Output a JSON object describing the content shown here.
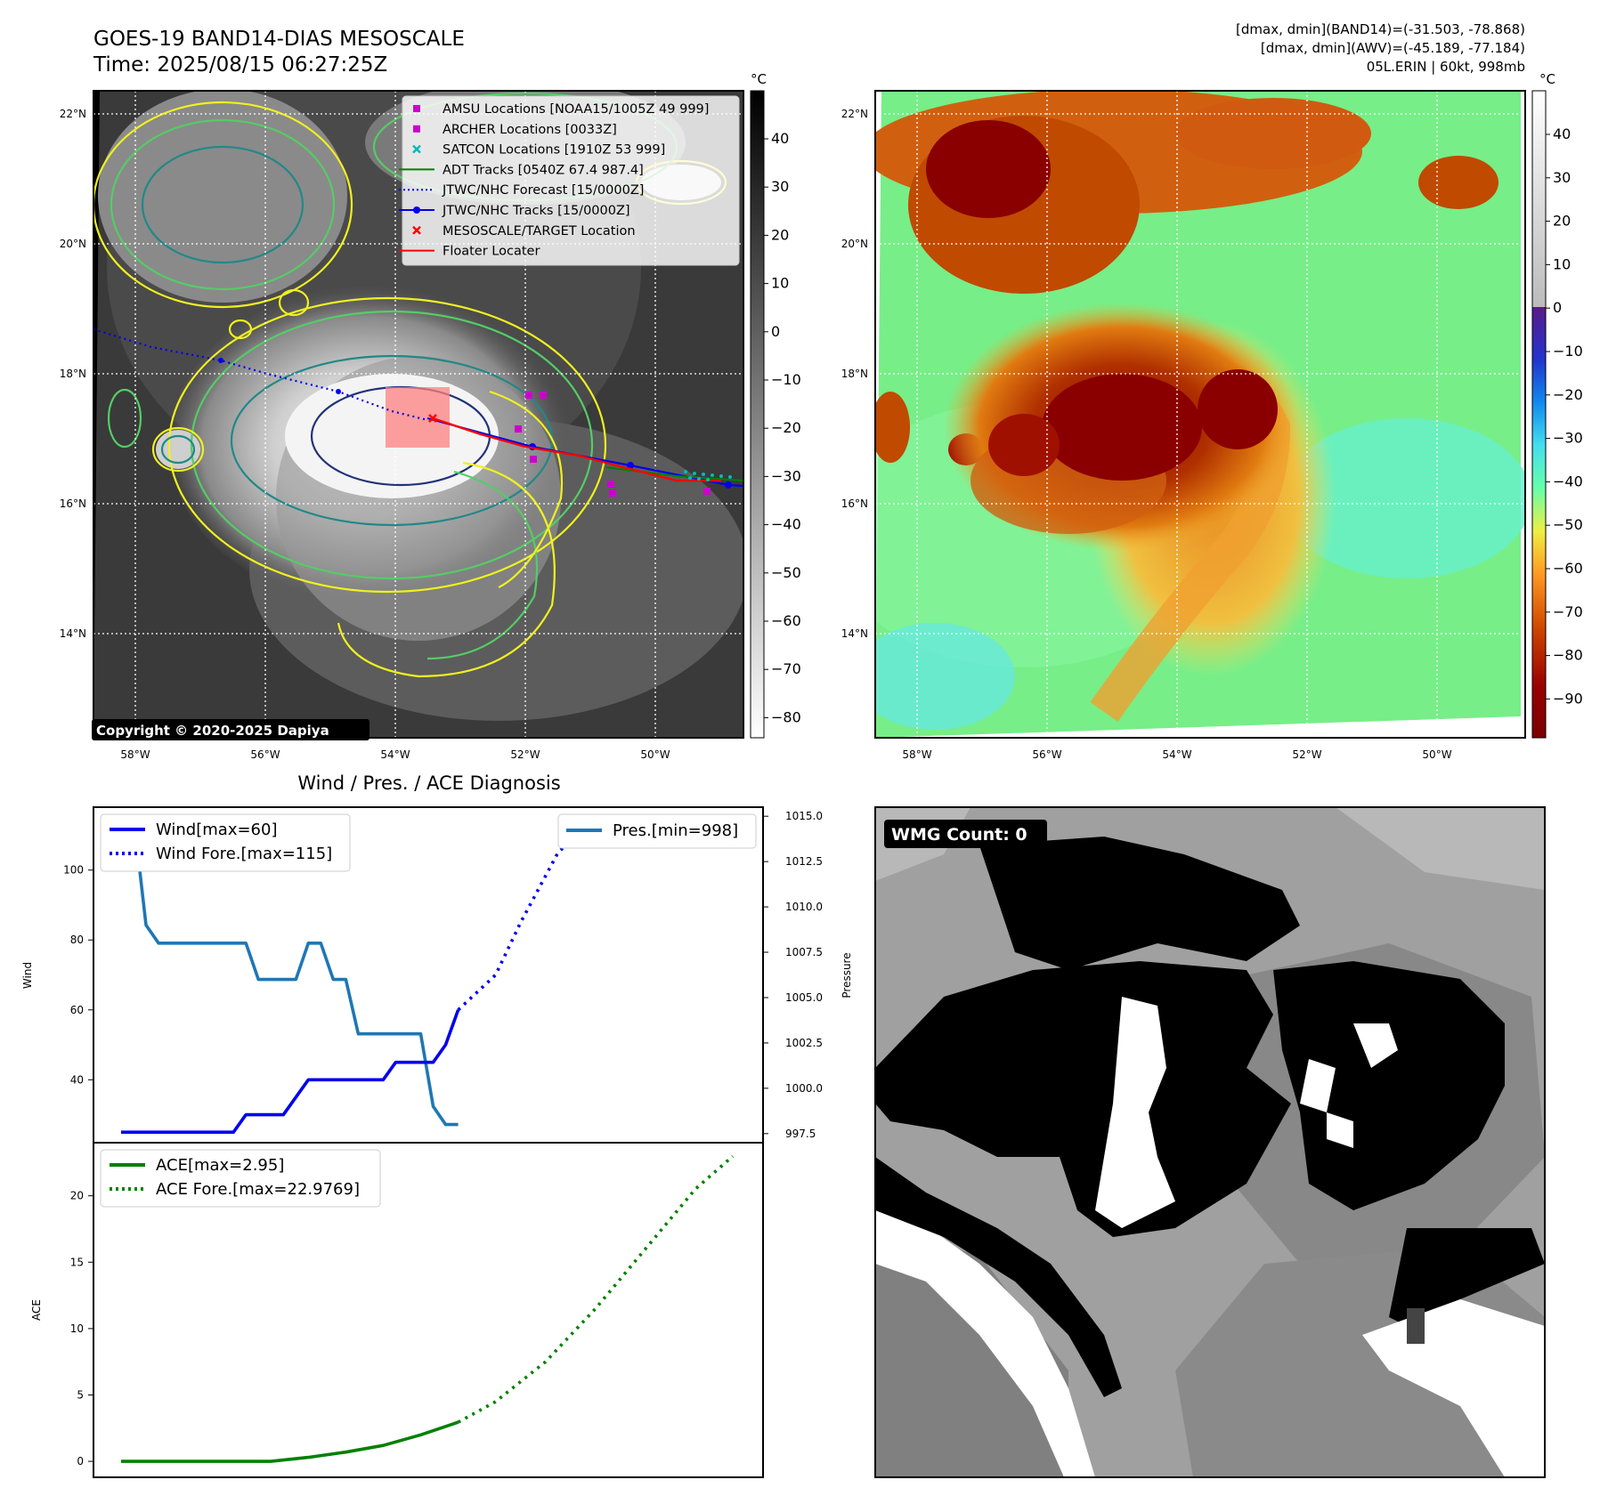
{
  "header": {
    "title_line1": "GOES-19 BAND14-DIAS MESOSCALE",
    "title_line2": "Time: 2025/08/15 06:27:25Z",
    "stats_line1": "[dmax, dmin](BAND14)=(-31.503, -78.868)",
    "stats_line2": "[dmax, dmin](AWV)=(-45.189, -77.184)",
    "stats_line3": "05L.ERIN | 60kt, 998mb"
  },
  "colors": {
    "wind": "#0000ee",
    "pres": "#1f77b4",
    "ace": "#008000",
    "amsu": "#cc00cc",
    "satcon": "#00bbbb",
    "adt": "#008000",
    "floater": "#ff0000",
    "contour_yellow": "#f0f020",
    "contour_green": "#55cc66",
    "contour_teal": "#228888",
    "contour_navy": "#223377"
  },
  "maps": {
    "unit": "°C",
    "lon_labels": [
      "58°W",
      "56°W",
      "54°W",
      "52°W",
      "50°W"
    ],
    "lat_labels": [
      "22°N",
      "20°N",
      "18°N",
      "16°N",
      "14°N"
    ],
    "gray_cbar_ticks": [
      "40",
      "30",
      "20",
      "10",
      "0",
      "−10",
      "−20",
      "−30",
      "−40",
      "−50",
      "−60",
      "−70",
      "−80"
    ],
    "color_cbar_ticks": [
      "40",
      "30",
      "20",
      "10",
      "0",
      "−10",
      "−20",
      "−30",
      "−40",
      "−50",
      "−60",
      "−70",
      "−80",
      "−90"
    ],
    "copyright": "Copyright © 2020-2025 Dapiya",
    "legend": [
      {
        "label": "AMSU Locations [NOAA15/1005Z 49 999]",
        "marker": "square",
        "color": "#cc00cc"
      },
      {
        "label": "ARCHER Locations [0033Z]",
        "marker": "square",
        "color": "#cc00cc"
      },
      {
        "label": "SATCON Locations [1910Z 53 999]",
        "marker": "x",
        "color": "#00bbbb"
      },
      {
        "label": "ADT Tracks [0540Z 67.4 987.4]",
        "marker": "line",
        "color": "#008000"
      },
      {
        "label": "JTWC/NHC Forecast [15/0000Z]",
        "marker": "dotted",
        "color": "#0000ee"
      },
      {
        "label": "JTWC/NHC Tracks [15/0000Z]",
        "marker": "line-dot",
        "color": "#0000ee"
      },
      {
        "label": "MESOSCALE/TARGET Location",
        "marker": "x",
        "color": "#ff0000"
      },
      {
        "label": "Floater Locater",
        "marker": "line",
        "color": "#ff0000"
      }
    ]
  },
  "diag": {
    "title": "Wind / Pres. / ACE Diagnosis",
    "wind_ylabel": "Wind",
    "pres_ylabel": "Pressure",
    "ace_ylabel": "ACE",
    "wind_legend": [
      "Wind[max=60]",
      "Wind Fore.[max=115]"
    ],
    "pres_legend": [
      "Pres.[min=998]"
    ],
    "ace_legend": [
      "ACE[max=2.95]",
      "ACE Fore.[max=22.9769]"
    ],
    "wind_ticks": [
      "40",
      "60",
      "80",
      "100"
    ],
    "pres_ticks": [
      "997.5",
      "1000.0",
      "1002.5",
      "1005.0",
      "1007.5",
      "1010.0",
      "1012.5",
      "1015.0"
    ],
    "ace_ticks": [
      "0",
      "5",
      "10",
      "15",
      "20"
    ]
  },
  "wmg": {
    "label": "WMG Count: 0"
  },
  "chart_data": [
    {
      "type": "line",
      "title": "Wind / Pres. / ACE Diagnosis",
      "ylabel": "Wind",
      "ylim": [
        22,
        118
      ],
      "series": [
        {
          "name": "Wind[max=60]",
          "x": [
            0,
            1,
            2,
            3,
            4,
            5,
            6,
            7,
            8,
            9,
            10,
            11,
            12,
            13,
            14,
            15,
            16,
            17,
            18,
            19,
            20,
            21,
            22,
            23,
            24,
            25,
            26,
            27
          ],
          "values": [
            25,
            25,
            25,
            25,
            25,
            25,
            25,
            25,
            25,
            25,
            30,
            30,
            30,
            30,
            35,
            40,
            40,
            40,
            40,
            40,
            40,
            40,
            45,
            45,
            45,
            45,
            50,
            60
          ]
        },
        {
          "name": "Wind Fore.[max=115]",
          "x": [
            27,
            30,
            32,
            35,
            38,
            42,
            46,
            49
          ],
          "values": [
            60,
            70,
            85,
            105,
            115,
            115,
            115,
            113
          ]
        }
      ]
    },
    {
      "type": "line",
      "ylabel": "Pressure",
      "ylim": [
        997,
        1015.5
      ],
      "series": [
        {
          "name": "Pres.[min=998]",
          "x": [
            0,
            1,
            2,
            3,
            4,
            5,
            6,
            7,
            8,
            9,
            10,
            11,
            12,
            13,
            14,
            15,
            16,
            17,
            18,
            19,
            20,
            21,
            22,
            23,
            24,
            25,
            26,
            27
          ],
          "values": [
            1015,
            1015,
            1009,
            1008,
            1008,
            1008,
            1008,
            1008,
            1008,
            1008,
            1008,
            1006,
            1006,
            1006,
            1006,
            1008,
            1008,
            1006,
            1006,
            1003,
            1003,
            1003,
            1003,
            1003,
            1003,
            999,
            998,
            998
          ]
        }
      ]
    },
    {
      "type": "line",
      "ylabel": "ACE",
      "ylim": [
        -1.2,
        24
      ],
      "series": [
        {
          "name": "ACE[max=2.95]",
          "x": [
            0,
            3,
            6,
            9,
            12,
            15,
            18,
            21,
            24,
            27
          ],
          "values": [
            0,
            0,
            0,
            0,
            0,
            0.3,
            0.7,
            1.2,
            2.0,
            2.95
          ]
        },
        {
          "name": "ACE Fore.[max=22.9769]",
          "x": [
            27,
            30,
            34,
            38,
            42,
            46,
            49
          ],
          "values": [
            2.95,
            4.5,
            7.5,
            11.5,
            16,
            20.5,
            22.98
          ]
        }
      ]
    }
  ]
}
